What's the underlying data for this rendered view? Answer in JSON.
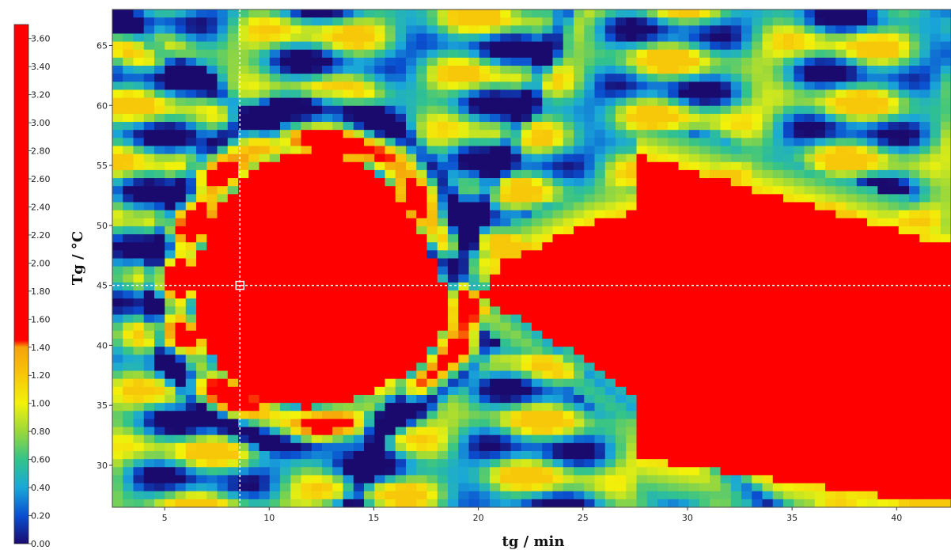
{
  "chart_data": {
    "type": "heatmap",
    "xlabel": "tg / min",
    "ylabel": "Tg / °C",
    "xlim": [
      2.5,
      42.6
    ],
    "ylim": [
      26.5,
      68.0
    ],
    "x_ticks": [
      5,
      10,
      15,
      20,
      25,
      30,
      35,
      40
    ],
    "y_ticks": [
      30,
      35,
      40,
      45,
      50,
      55,
      60,
      65
    ],
    "colorbar": {
      "min": 0.0,
      "max": 3.7,
      "ticks": [
        0.0,
        0.2,
        0.4,
        0.6,
        0.8,
        1.0,
        1.2,
        1.4,
        1.6,
        1.8,
        2.0,
        2.2,
        2.4,
        2.6,
        2.8,
        3.0,
        3.2,
        3.4,
        3.6
      ],
      "tick_labels": [
        "0.00",
        "0.20",
        "0.40",
        "0.60",
        "0.80",
        "1.00",
        "1.20",
        "1.40",
        "1.60",
        "1.80",
        "2.00",
        "2.20",
        "2.40",
        "2.60",
        "2.80",
        "3.00",
        "3.20",
        "3.40",
        "3.60"
      ],
      "stops": [
        {
          "value": 0.0,
          "color": "#1a0a6e"
        },
        {
          "value": 0.2,
          "color": "#0a4fd0"
        },
        {
          "value": 0.4,
          "color": "#1aa8d8"
        },
        {
          "value": 0.6,
          "color": "#33c38a"
        },
        {
          "value": 0.8,
          "color": "#9ad83a"
        },
        {
          "value": 1.0,
          "color": "#f2f20a"
        },
        {
          "value": 1.2,
          "color": "#f7c70a"
        },
        {
          "value": 1.4,
          "color": "#f5a30a"
        },
        {
          "value": 1.45,
          "color": "#ff0000"
        },
        {
          "value": 3.7,
          "color": "#ff0000"
        }
      ]
    },
    "crosshair": {
      "x": 8.6,
      "y": 45.0
    },
    "regions": [
      {
        "name": "left-red-lobe",
        "x_range": [
          6.5,
          17.5
        ],
        "y_range": [
          35,
          56
        ],
        "value_range": [
          1.5,
          3.6
        ]
      },
      {
        "name": "right-red-wedge",
        "x_range": [
          19,
          42.6
        ],
        "y_range": [
          27,
          57
        ],
        "value_range": [
          1.5,
          3.6
        ]
      },
      {
        "name": "low-value-bands",
        "x_range": [
          2.5,
          42.6
        ],
        "y_range": [
          26.5,
          68
        ],
        "value_range": [
          0.0,
          1.2
        ]
      }
    ]
  }
}
